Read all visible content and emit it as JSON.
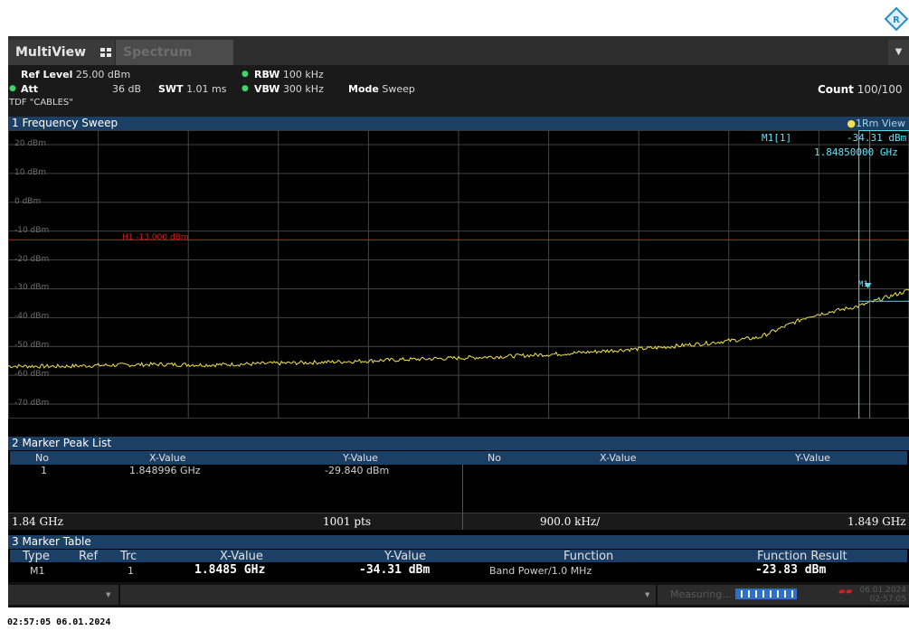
{
  "colors": {
    "trace": "#f1e34a",
    "marker": "#5fd9ef",
    "limit": "#cc2020",
    "header": "#1c3f66",
    "grid": "#444444"
  },
  "tabs": {
    "multiview": "MultiView",
    "spectrum": "Spectrum"
  },
  "info": {
    "ref_level_label": "Ref Level",
    "ref_level_value": "25.00 dBm",
    "att_label": "Att",
    "att_value": "36 dB",
    "swt_label": "SWT",
    "swt_value": "1.01 ms",
    "rbw_label": "RBW",
    "rbw_value": "100 kHz",
    "vbw_label": "VBW",
    "vbw_value": "300 kHz",
    "mode_label": "Mode",
    "mode_value": "Sweep",
    "count_label": "Count",
    "count_value": "100/100",
    "tdf": "TDF \"CABLES\""
  },
  "sweep": {
    "title": "1 Frequency Sweep",
    "view": "1Rm View",
    "y_labels": [
      "20 dBm",
      "10 dBm",
      "0 dBm",
      "-10 dBm",
      "-20 dBm",
      "-30 dBm",
      "-40 dBm",
      "-50 dBm",
      "-60 dBm",
      "-70 dBm"
    ],
    "limit_line_label": "H1 -13.000 dBm",
    "marker_readout_name": "M1[1]",
    "marker_readout_level": "-34.31 dBm",
    "marker_readout_freq": "1.84850000 GHz",
    "marker_label": "M1",
    "start_freq": "1.84 GHz",
    "points": "1001 pts",
    "span_per_div": "900.0 kHz/",
    "stop_freq": "1.849 GHz"
  },
  "peak_list": {
    "title": "2 Marker Peak List",
    "headers": [
      "No",
      "X-Value",
      "Y-Value",
      "No",
      "X-Value",
      "Y-Value"
    ],
    "rows": [
      {
        "no": "1",
        "x": "1.848996 GHz",
        "y": "-29.840 dBm"
      }
    ]
  },
  "marker_table": {
    "title": "3 Marker Table",
    "headers": [
      "Type",
      "Ref",
      "Trc",
      "X-Value",
      "Y-Value",
      "Function",
      "Function Result"
    ],
    "rows": [
      {
        "type": "M1",
        "ref": "",
        "trc": "1",
        "x": "1.8485 GHz",
        "y": "-34.31 dBm",
        "function": "Band Power/1.0 MHz",
        "result": "-23.83 dBm"
      }
    ]
  },
  "status": {
    "measuring": "Measuring...",
    "date": "06.01.2024",
    "time": "02:57:05"
  },
  "timestamp": "02:57:05  06.01.2024",
  "chart_data": {
    "type": "line",
    "x_range_ghz": [
      1.84,
      1.849
    ],
    "ylim": [
      -75,
      25
    ],
    "limit_line_dbm": -13,
    "marker": {
      "x_ghz": 1.8485,
      "y_dbm": -34.31
    },
    "series": [
      {
        "x_ghz": [
          1.84,
          1.8405,
          1.841,
          1.8415,
          1.842,
          1.8425,
          1.843,
          1.8435,
          1.844,
          1.8445,
          1.845,
          1.8455,
          1.846,
          1.8465,
          1.847,
          1.8475,
          1.848,
          1.8485,
          1.849
        ],
        "y_dbm": [
          -56.8,
          -56.9,
          -56.5,
          -56.2,
          -56.4,
          -56.0,
          -55.6,
          -55.1,
          -54.5,
          -54.0,
          -53.4,
          -52.6,
          -51.5,
          -50.4,
          -48.8,
          -46.9,
          -39.5,
          -36.0,
          -30.5
        ]
      }
    ]
  }
}
